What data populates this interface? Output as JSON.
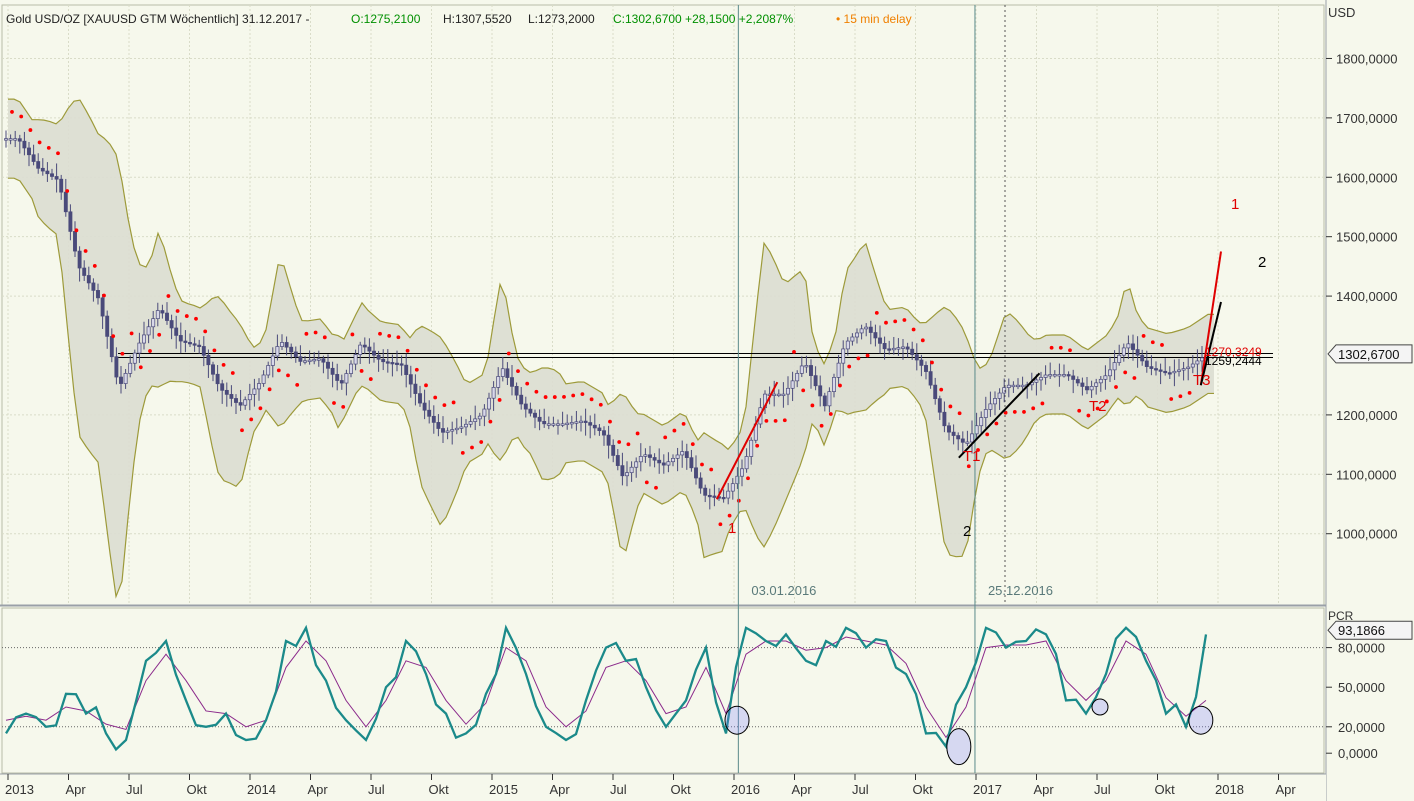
{
  "header": {
    "title": "Gold USD/OZ [XAUUSD GTM Wöchentlich] 31.12.2017 -",
    "open": "O:1275,2100",
    "high": "H:1307,5520",
    "low": "L:1273,2000",
    "change": "C:1302,6700 +28,1500 +2,2087%",
    "delay": "• 15 min delay"
  },
  "colors": {
    "background": "#f6f8ec",
    "grid": "#d9dcc8",
    "band_fill": "#dcddd2",
    "band_line": "#9d9a3a",
    "candle": "#4a4a7a",
    "sar": "#ff0000",
    "stoch_k": "#1b8a8a",
    "stoch_d": "#8b2a8b",
    "red_annotation": "#e00000",
    "delay_text": "#f08000",
    "ohlc_text": "#009000",
    "vline": "#5a8a8a"
  },
  "chart_data": [
    {
      "type": "candlestick",
      "title": "Gold USD/OZ [XAUUSD GTM Wöchentlich] 31.12.2017",
      "ylabel": "USD",
      "ylim": [
        880,
        1890
      ],
      "yticks": [
        {
          "value": 1800,
          "label": "1800,0000"
        },
        {
          "value": 1700,
          "label": "1700,0000"
        },
        {
          "value": 1600,
          "label": "1600,0000"
        },
        {
          "value": 1500,
          "label": "1500,0000"
        },
        {
          "value": 1400,
          "label": "1400,0000"
        },
        {
          "value": 1200,
          "label": "1200,0000"
        },
        {
          "value": 1100,
          "label": "1100,0000"
        },
        {
          "value": 1000,
          "label": "1000,0000"
        }
      ],
      "last_price": {
        "value": 1302.67,
        "label": "1302,6700"
      },
      "grid": true,
      "close_series": [
        {
          "date": "2013-01",
          "value": 1665
        },
        {
          "date": "2013-02",
          "value": 1615
        },
        {
          "date": "2013-03",
          "value": 1595
        },
        {
          "date": "2013-04",
          "value": 1450
        },
        {
          "date": "2013-05",
          "value": 1395
        },
        {
          "date": "2013-06",
          "value": 1245
        },
        {
          "date": "2013-07",
          "value": 1320
        },
        {
          "date": "2013-08",
          "value": 1380
        },
        {
          "date": "2013-09",
          "value": 1325
        },
        {
          "date": "2013-10",
          "value": 1315
        },
        {
          "date": "2013-11",
          "value": 1245
        },
        {
          "date": "2013-12",
          "value": 1215
        },
        {
          "date": "2014-01",
          "value": 1255
        },
        {
          "date": "2014-02",
          "value": 1325
        },
        {
          "date": "2014-03",
          "value": 1290
        },
        {
          "date": "2014-04",
          "value": 1295
        },
        {
          "date": "2014-05",
          "value": 1250
        },
        {
          "date": "2014-06",
          "value": 1320
        },
        {
          "date": "2014-07",
          "value": 1290
        },
        {
          "date": "2014-08",
          "value": 1285
        },
        {
          "date": "2014-09",
          "value": 1215
        },
        {
          "date": "2014-10",
          "value": 1170
        },
        {
          "date": "2014-11",
          "value": 1180
        },
        {
          "date": "2014-12",
          "value": 1200
        },
        {
          "date": "2015-01",
          "value": 1280
        },
        {
          "date": "2015-02",
          "value": 1215
        },
        {
          "date": "2015-03",
          "value": 1185
        },
        {
          "date": "2015-04",
          "value": 1185
        },
        {
          "date": "2015-05",
          "value": 1190
        },
        {
          "date": "2015-06",
          "value": 1170
        },
        {
          "date": "2015-07",
          "value": 1095
        },
        {
          "date": "2015-08",
          "value": 1135
        },
        {
          "date": "2015-09",
          "value": 1115
        },
        {
          "date": "2015-10",
          "value": 1140
        },
        {
          "date": "2015-11",
          "value": 1065
        },
        {
          "date": "2015-12",
          "value": 1060
        },
        {
          "date": "2016-01",
          "value": 1115
        },
        {
          "date": "2016-02",
          "value": 1235
        },
        {
          "date": "2016-03",
          "value": 1235
        },
        {
          "date": "2016-04",
          "value": 1290
        },
        {
          "date": "2016-05",
          "value": 1215
        },
        {
          "date": "2016-06",
          "value": 1320
        },
        {
          "date": "2016-07",
          "value": 1350
        },
        {
          "date": "2016-08",
          "value": 1310
        },
        {
          "date": "2016-09",
          "value": 1315
        },
        {
          "date": "2016-10",
          "value": 1275
        },
        {
          "date": "2016-11",
          "value": 1175
        },
        {
          "date": "2016-12",
          "value": 1150
        },
        {
          "date": "2017-01",
          "value": 1210
        },
        {
          "date": "2017-02",
          "value": 1250
        },
        {
          "date": "2017-03",
          "value": 1250
        },
        {
          "date": "2017-04",
          "value": 1268
        },
        {
          "date": "2017-05",
          "value": 1268
        },
        {
          "date": "2017-06",
          "value": 1242
        },
        {
          "date": "2017-07",
          "value": 1268
        },
        {
          "date": "2017-08",
          "value": 1322
        },
        {
          "date": "2017-09",
          "value": 1280
        },
        {
          "date": "2017-10",
          "value": 1270
        },
        {
          "date": "2017-11",
          "value": 1280
        },
        {
          "date": "2017-12",
          "value": 1302.67
        }
      ],
      "horizontal_line": {
        "value": 1300
      },
      "vertical_markers": [
        {
          "date": "2016-01-03",
          "label": "03.01.2016"
        },
        {
          "date": "2016-12-25",
          "label": "25.12.2016"
        }
      ],
      "annotations": [
        {
          "text": "1",
          "color": "red",
          "near": "2015-12 low"
        },
        {
          "text": "2",
          "color": "black",
          "near": "2016-12 low"
        },
        {
          "text": "T1",
          "color": "red"
        },
        {
          "text": "T2",
          "color": "red"
        },
        {
          "text": "T3",
          "color": "red"
        },
        {
          "text": "1",
          "color": "red",
          "near": "projection end"
        },
        {
          "text": "2",
          "color": "black",
          "near": "projection end"
        },
        {
          "text": "1270,3249",
          "color": "red"
        },
        {
          "text": "1259,2444",
          "color": "black"
        }
      ],
      "projections": [
        {
          "name": "1",
          "from": {
            "date": "2015-12",
            "value": 1058
          },
          "to": {
            "date": "2016-03",
            "value": 1255
          }
        },
        {
          "name": "2",
          "from": {
            "date": "2016-12",
            "value": 1128
          },
          "to": {
            "date": "2017-04",
            "value": 1270
          }
        },
        {
          "name": "1",
          "from": {
            "date": "2017-12",
            "value": 1250
          },
          "to": {
            "date": "2018-01",
            "value": 1475
          }
        },
        {
          "name": "2",
          "from": {
            "date": "2017-12",
            "value": 1250
          },
          "to": {
            "date": "2018-01",
            "value": 1390
          }
        }
      ]
    },
    {
      "type": "line",
      "title": "PCR",
      "ylim": [
        -15,
        110
      ],
      "yticks": [
        {
          "value": 80,
          "label": "80,0000"
        },
        {
          "value": 50,
          "label": "50,0000"
        },
        {
          "value": 20,
          "label": "20,0000"
        },
        {
          "value": 0,
          "label": "0,0000"
        }
      ],
      "last_value": {
        "value": 93.1866,
        "label": "93,1866"
      },
      "reference_lines": [
        80,
        20
      ],
      "x_tick_labels": [
        "2013",
        "Apr",
        "Jul",
        "Okt",
        "2014",
        "Apr",
        "Jul",
        "Okt",
        "2015",
        "Apr",
        "Jul",
        "Okt",
        "2016",
        "Apr",
        "Jul",
        "Okt",
        "2017",
        "Apr",
        "Jul",
        "Okt",
        "2018",
        "Apr"
      ],
      "series": [
        {
          "values": [
            15,
            30,
            20,
            45,
            30,
            15,
            10,
            70,
            85,
            40,
            20,
            30,
            10,
            25,
            85,
            95,
            55,
            25,
            10,
            50,
            85,
            60,
            30,
            15,
            45,
            95,
            60,
            20,
            10,
            40,
            80,
            70,
            50,
            20,
            40,
            80,
            15,
            95,
            85,
            90,
            70,
            85,
            95,
            80,
            85,
            60,
            15,
            5,
            50,
            95,
            80,
            85,
            90,
            40,
            30,
            60,
            95,
            70,
            30,
            20,
            90
          ]
        },
        {
          "values": [
            25,
            28,
            25,
            35,
            32,
            22,
            18,
            55,
            75,
            55,
            32,
            30,
            20,
            25,
            65,
            85,
            70,
            40,
            20,
            40,
            70,
            65,
            40,
            22,
            38,
            80,
            70,
            35,
            20,
            32,
            65,
            70,
            55,
            30,
            35,
            65,
            30,
            75,
            85,
            85,
            78,
            80,
            88,
            85,
            82,
            68,
            35,
            12,
            35,
            80,
            82,
            82,
            85,
            55,
            40,
            55,
            85,
            75,
            42,
            28,
            40
          ]
        }
      ],
      "highlights": [
        "2016-01",
        "2016-12",
        "2017-07",
        "2017-12"
      ]
    }
  ]
}
